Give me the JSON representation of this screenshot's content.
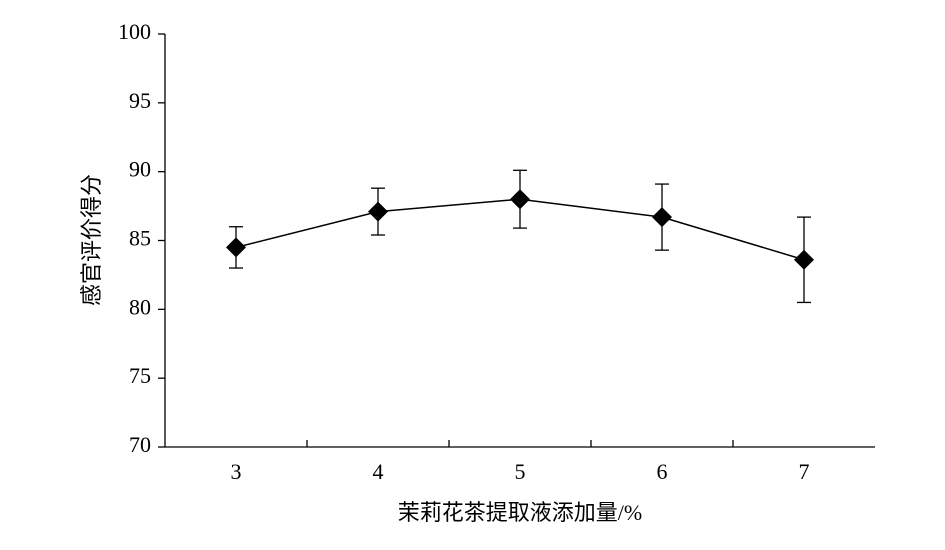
{
  "chart_data": {
    "type": "line",
    "x_label": "茉莉花茶提取液添加量/%",
    "y_label": "感官评价得分",
    "categories": [
      "3",
      "4",
      "5",
      "6",
      "7"
    ],
    "series": [
      {
        "color": "#000000",
        "values": [
          84.5,
          87.1,
          88.0,
          86.7,
          83.6
        ],
        "errors": [
          1.5,
          1.7,
          2.1,
          2.4,
          3.1
        ]
      }
    ],
    "ylim": [
      70,
      100
    ],
    "yticks": [
      70,
      75,
      80,
      85,
      90,
      95,
      100
    ]
  }
}
